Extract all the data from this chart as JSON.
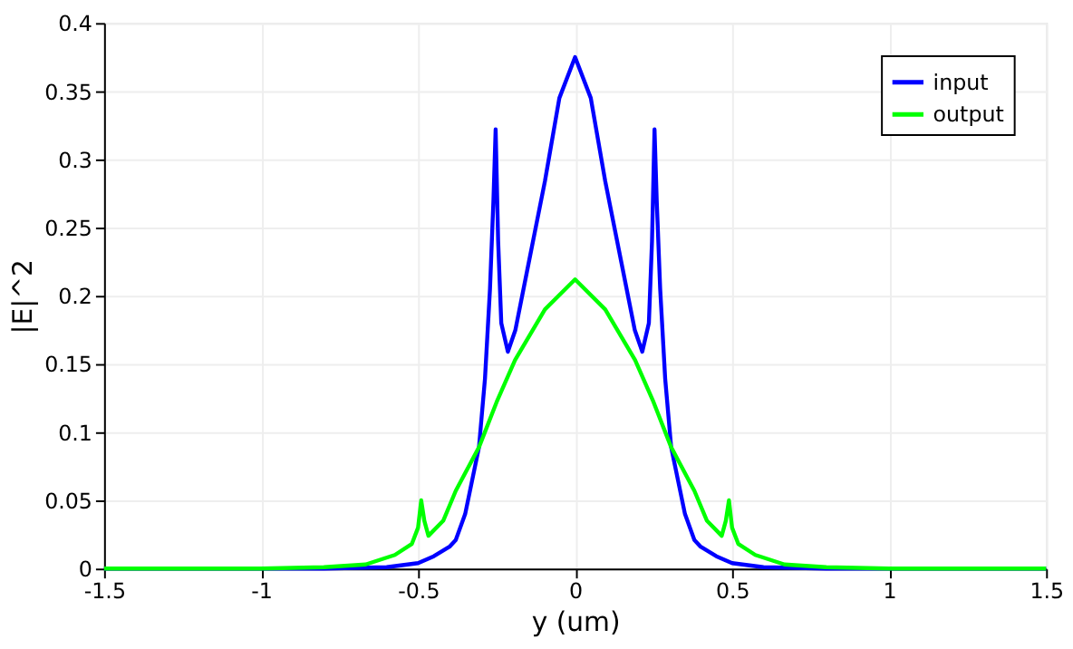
{
  "chart_data": {
    "type": "line",
    "xlabel": "y (um)",
    "ylabel": "|E|^2",
    "xlim": [
      -1.5,
      1.5
    ],
    "ylim": [
      0,
      0.4
    ],
    "xticks": [
      -1.5,
      -1,
      -0.5,
      0,
      0.5,
      1,
      1.5
    ],
    "yticks": [
      0,
      0.05,
      0.1,
      0.15,
      0.2,
      0.25,
      0.3,
      0.35,
      0.4
    ],
    "grid": true,
    "legend": "top right",
    "marker": "none",
    "line_style": "solid",
    "series": [
      {
        "name": "input",
        "color": "#0000ff",
        "x": [
          -1.5,
          -0.8,
          -0.6,
          -0.5,
          -0.45,
          -0.4,
          -0.38,
          -0.35,
          -0.306,
          -0.287,
          -0.271,
          -0.26,
          -0.253,
          -0.245,
          -0.235,
          -0.214,
          -0.19,
          -0.153,
          -0.096,
          -0.05,
          0,
          0.05,
          0.096,
          0.153,
          0.19,
          0.214,
          0.235,
          0.245,
          0.253,
          0.26,
          0.271,
          0.287,
          0.306,
          0.35,
          0.38,
          0.4,
          0.45,
          0.5,
          0.6,
          0.8,
          1.5
        ],
        "values": [
          0,
          0,
          0.001,
          0.004,
          0.009,
          0.016,
          0.021,
          0.04,
          0.089,
          0.139,
          0.205,
          0.27,
          0.322,
          0.24,
          0.18,
          0.159,
          0.175,
          0.218,
          0.284,
          0.345,
          0.375,
          0.345,
          0.284,
          0.218,
          0.175,
          0.159,
          0.18,
          0.24,
          0.322,
          0.27,
          0.205,
          0.139,
          0.089,
          0.04,
          0.021,
          0.016,
          0.009,
          0.004,
          0.001,
          0,
          0
        ]
      },
      {
        "name": "output",
        "color": "#00ff00",
        "x": [
          -1.5,
          -1.0,
          -0.8,
          -0.667,
          -0.574,
          -0.52,
          -0.5,
          -0.49,
          -0.48,
          -0.467,
          -0.42,
          -0.38,
          -0.306,
          -0.25,
          -0.191,
          -0.096,
          0,
          0.096,
          0.191,
          0.25,
          0.306,
          0.38,
          0.42,
          0.467,
          0.48,
          0.49,
          0.5,
          0.52,
          0.574,
          0.667,
          0.8,
          1.0,
          1.5
        ],
        "values": [
          0,
          0,
          0.001,
          0.003,
          0.01,
          0.018,
          0.03,
          0.05,
          0.035,
          0.024,
          0.035,
          0.057,
          0.089,
          0.122,
          0.153,
          0.19,
          0.212,
          0.19,
          0.153,
          0.122,
          0.089,
          0.057,
          0.035,
          0.024,
          0.035,
          0.05,
          0.03,
          0.018,
          0.01,
          0.003,
          0.001,
          0,
          0
        ]
      }
    ]
  }
}
